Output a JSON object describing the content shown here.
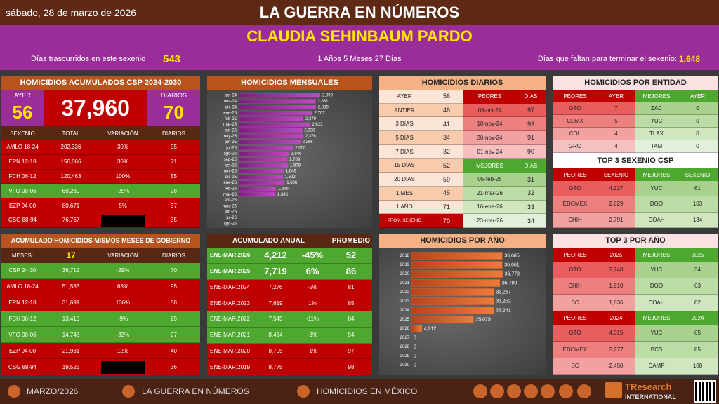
{
  "header": {
    "date": "sábado, 28 de marzo de 2026",
    "title": "LA GUERRA EN NÚMEROS",
    "president": "CLAUDIA SEHINBAUM PARDO",
    "days_label": "Días trascurridos en este sexenio",
    "days_value": "543",
    "duration": "1 Años 5 Meses 27 Días",
    "remaining_label": "Días que faltan para terminar el sexenio:",
    "remaining_value": "1,648"
  },
  "accumulated": {
    "title": "HOMICIDIOS ACUMULADOS CSP 2024-2030",
    "yesterday_label": "AYER",
    "yesterday": "56",
    "total": "37,960",
    "daily_label": "DIARIOS",
    "daily": "70",
    "columns": [
      "SEXENIO",
      "TOTAL",
      "VARIACIÓN",
      "DIARIOS"
    ],
    "rows": [
      [
        "AMLO 18-24",
        "202,336",
        "30%",
        "95"
      ],
      [
        "EPN 12-18",
        "156,066",
        "30%",
        "71"
      ],
      [
        "FCH 06-12",
        "120,463",
        "100%",
        "55"
      ],
      [
        "VFO 00-06",
        "60,280",
        "-25%",
        "28"
      ],
      [
        "EZP 94-00",
        "80,671",
        "5%",
        "37"
      ],
      [
        "CSG 88-94",
        "76,767",
        null,
        "35"
      ]
    ],
    "row_colors": [
      "#c00000",
      "#c00000",
      "#c00000",
      "#4ea72e",
      "#c00000",
      "#c00000"
    ]
  },
  "same_months": {
    "title": "ACUMULADO HOMICIDIOS MISMOS MESES DE GOBIERNO",
    "columns": [
      "MESES:",
      "17",
      "VARIACIÓN",
      "DIARIOS"
    ],
    "rows": [
      [
        "CSP 24-30",
        "36,712",
        "-29%",
        "70"
      ],
      [
        "AMLO 18-24",
        "51,583",
        "63%",
        "95"
      ],
      [
        "EPN 12-18",
        "31,691",
        "136%",
        "58"
      ],
      [
        "FCH 06-12",
        "13,413",
        "-9%",
        "25"
      ],
      [
        "VFO 00-06",
        "14,748",
        "-33%",
        "27"
      ],
      [
        "EZP 94-00",
        "21,931",
        "12%",
        "40"
      ],
      [
        "CSG 88-94",
        "19,525",
        null,
        "36"
      ]
    ],
    "row_colors": [
      "#4ea72e",
      "#c00000",
      "#c00000",
      "#4ea72e",
      "#4ea72e",
      "#c00000",
      "#c00000"
    ]
  },
  "monthly_chart": {
    "type": "bar",
    "title": "HOMICIDIOS MENSUALES",
    "categories": [
      "oct-24",
      "nov-24",
      "dic-24",
      "ene-25",
      "feb-25",
      "mar-25",
      "abr-25",
      "may-25",
      "jun-25",
      "jul-25",
      "ago-25",
      "sep-25",
      "oct-25",
      "nov-25",
      "dic-25",
      "ene-26",
      "feb-26",
      "mar-26",
      "abr-26",
      "may-26",
      "jun-26",
      "jul-26",
      "ago-26"
    ],
    "values": [
      2999,
      2831,
      2839,
      2707,
      2379,
      2623,
      2338,
      2376,
      2266,
      2000,
      1846,
      1789,
      1809,
      1646,
      1622,
      1686,
      1366,
      1346,
      null,
      null,
      null,
      null,
      null
    ],
    "value_labels": [
      "2,999",
      "2,831",
      "2,839",
      "2,707",
      "2,379",
      "2,623",
      "2,338",
      "2,376",
      "2,266",
      "2,000",
      "1,846",
      "1,789",
      "1,809",
      "1,646",
      "1,622",
      "1,686",
      "1,366",
      "1,346",
      null,
      null,
      null,
      null,
      null
    ],
    "color": "#b03fb0",
    "xlim": [
      0,
      3000
    ]
  },
  "annual": {
    "columns": [
      "ACUMULADO ANUAL",
      "PROMEDIO"
    ],
    "rows": [
      [
        "ENE-MAR.2026",
        "4,212",
        "-45%",
        "52"
      ],
      [
        "ENE-MAR.2025",
        "7,719",
        "6%",
        "86"
      ],
      [
        "ENE-MAR.2024",
        "7,276",
        "-5%",
        "81"
      ],
      [
        "ENE-MAR.2023",
        "7,619",
        "1%",
        "85"
      ],
      [
        "ENE-MAR.2022",
        "7,545",
        "-11%",
        "84"
      ],
      [
        "ENE-MAR.2021",
        "8,484",
        "-3%",
        "94"
      ],
      [
        "ENE-MAR.2020",
        "8,705",
        "-1%",
        "97"
      ],
      [
        "ENE-MAR.2019",
        "8,775",
        null,
        "98"
      ]
    ],
    "row_colors": [
      "#4ea72e",
      "#4ea72e",
      "#c00000",
      "#c00000",
      "#4ea72e",
      "#4ea72e",
      "#c00000",
      "#c00000"
    ]
  },
  "daily": {
    "title": "HOMICIDIOS DIARIOS",
    "periods": [
      [
        "AYER",
        "56"
      ],
      [
        "ANTIER",
        "46"
      ],
      [
        "3 DÍAS",
        "41"
      ],
      [
        "5 DÍAS",
        "34"
      ],
      [
        "7 DÍAS",
        "32"
      ],
      [
        "15 DÍAS",
        "52"
      ],
      [
        "20 DÍAS",
        "59"
      ],
      [
        "1 MES",
        "45"
      ],
      [
        "1 AÑO",
        "71"
      ],
      [
        "PROM. SEXENIO",
        "70"
      ]
    ],
    "worst": {
      "columns": [
        "PEORES",
        "DÍAS"
      ],
      "rows": [
        [
          "03-oct-24",
          "97"
        ],
        [
          "10-nov-24",
          "93"
        ],
        [
          "30-nov-24",
          "91"
        ],
        [
          "01-nov-24",
          "90"
        ]
      ]
    },
    "best": {
      "columns": [
        "MEJORES",
        "DÍAS"
      ],
      "rows": [
        [
          "05-feb-26",
          "31"
        ],
        [
          "21-mar-26",
          "32"
        ],
        [
          "16-ene-26",
          "33"
        ],
        [
          "23-mar-26",
          "34"
        ]
      ]
    }
  },
  "yearly_chart": {
    "type": "bar",
    "title": "HOMICIDIOS POR AÑO",
    "categories": [
      "2018",
      "2019",
      "2020",
      "2021",
      "2022",
      "2023",
      "2024",
      "2025",
      "2026",
      "2027",
      "2028",
      "2029",
      "2030"
    ],
    "values": [
      36685,
      36661,
      36773,
      35700,
      33287,
      33252,
      33241,
      25079,
      4212,
      0,
      0,
      0,
      0
    ],
    "value_labels": [
      "36,685",
      "36,661",
      "36,773",
      "35,700",
      "33,287",
      "33,252",
      "33,241",
      "25,079",
      "4,212",
      "0",
      "0",
      "0",
      "0"
    ],
    "color": "#e0662a",
    "xlim": [
      0,
      40000
    ]
  },
  "entity": {
    "title": "HOMICIDIOS POR ENTIDAD",
    "columns": [
      "PEORES",
      "AYER",
      "MEJORES",
      "AYER"
    ],
    "rows": [
      [
        "GTO",
        "7",
        "ZAC",
        "0"
      ],
      [
        "CDMX",
        "5",
        "YUC",
        "0"
      ],
      [
        "COL",
        "4",
        "TLAX",
        "0"
      ],
      [
        "GRO",
        "4",
        "TAM",
        "0"
      ]
    ]
  },
  "top_sexenio": {
    "title": "TOP 3 SEXENIO CSP",
    "columns": [
      "PEORES",
      "SEXENIO",
      "MEJORES",
      "SEXENIO"
    ],
    "rows": [
      [
        "GTO",
        "4,227",
        "YUC",
        "61"
      ],
      [
        "EDOMEX",
        "2,829",
        "DGO",
        "103"
      ],
      [
        "CHIH",
        "2,791",
        "COAH",
        "134"
      ]
    ]
  },
  "top_year": {
    "title": "TOP 3 POR AÑO",
    "groups": [
      {
        "columns": [
          "PEORES",
          "2025",
          "MEJORES",
          "2025"
        ],
        "rows": [
          [
            "GTO",
            "2,748",
            "YUC",
            "34"
          ],
          [
            "CHIH",
            "1,910",
            "DGO",
            "63"
          ],
          [
            "BC",
            "1,836",
            "COAH",
            "82"
          ]
        ]
      },
      {
        "columns": [
          "PEORES",
          "2024",
          "MEJORES",
          "2024"
        ],
        "rows": [
          [
            "GTO",
            "4,015",
            "YUC",
            "65"
          ],
          [
            "EDOMEX",
            "3,277",
            "BCS",
            "85"
          ],
          [
            "BC",
            "2,450",
            "CAMP",
            "108"
          ]
        ]
      }
    ]
  },
  "footer": {
    "date": "MARZO/2026",
    "brand": "LA GUERRA EN NÚMEROS",
    "topic": "HOMICIDIOS EN MÉXICO",
    "logo": "TResearch",
    "logo_sub": "INTERNATIONAL"
  }
}
